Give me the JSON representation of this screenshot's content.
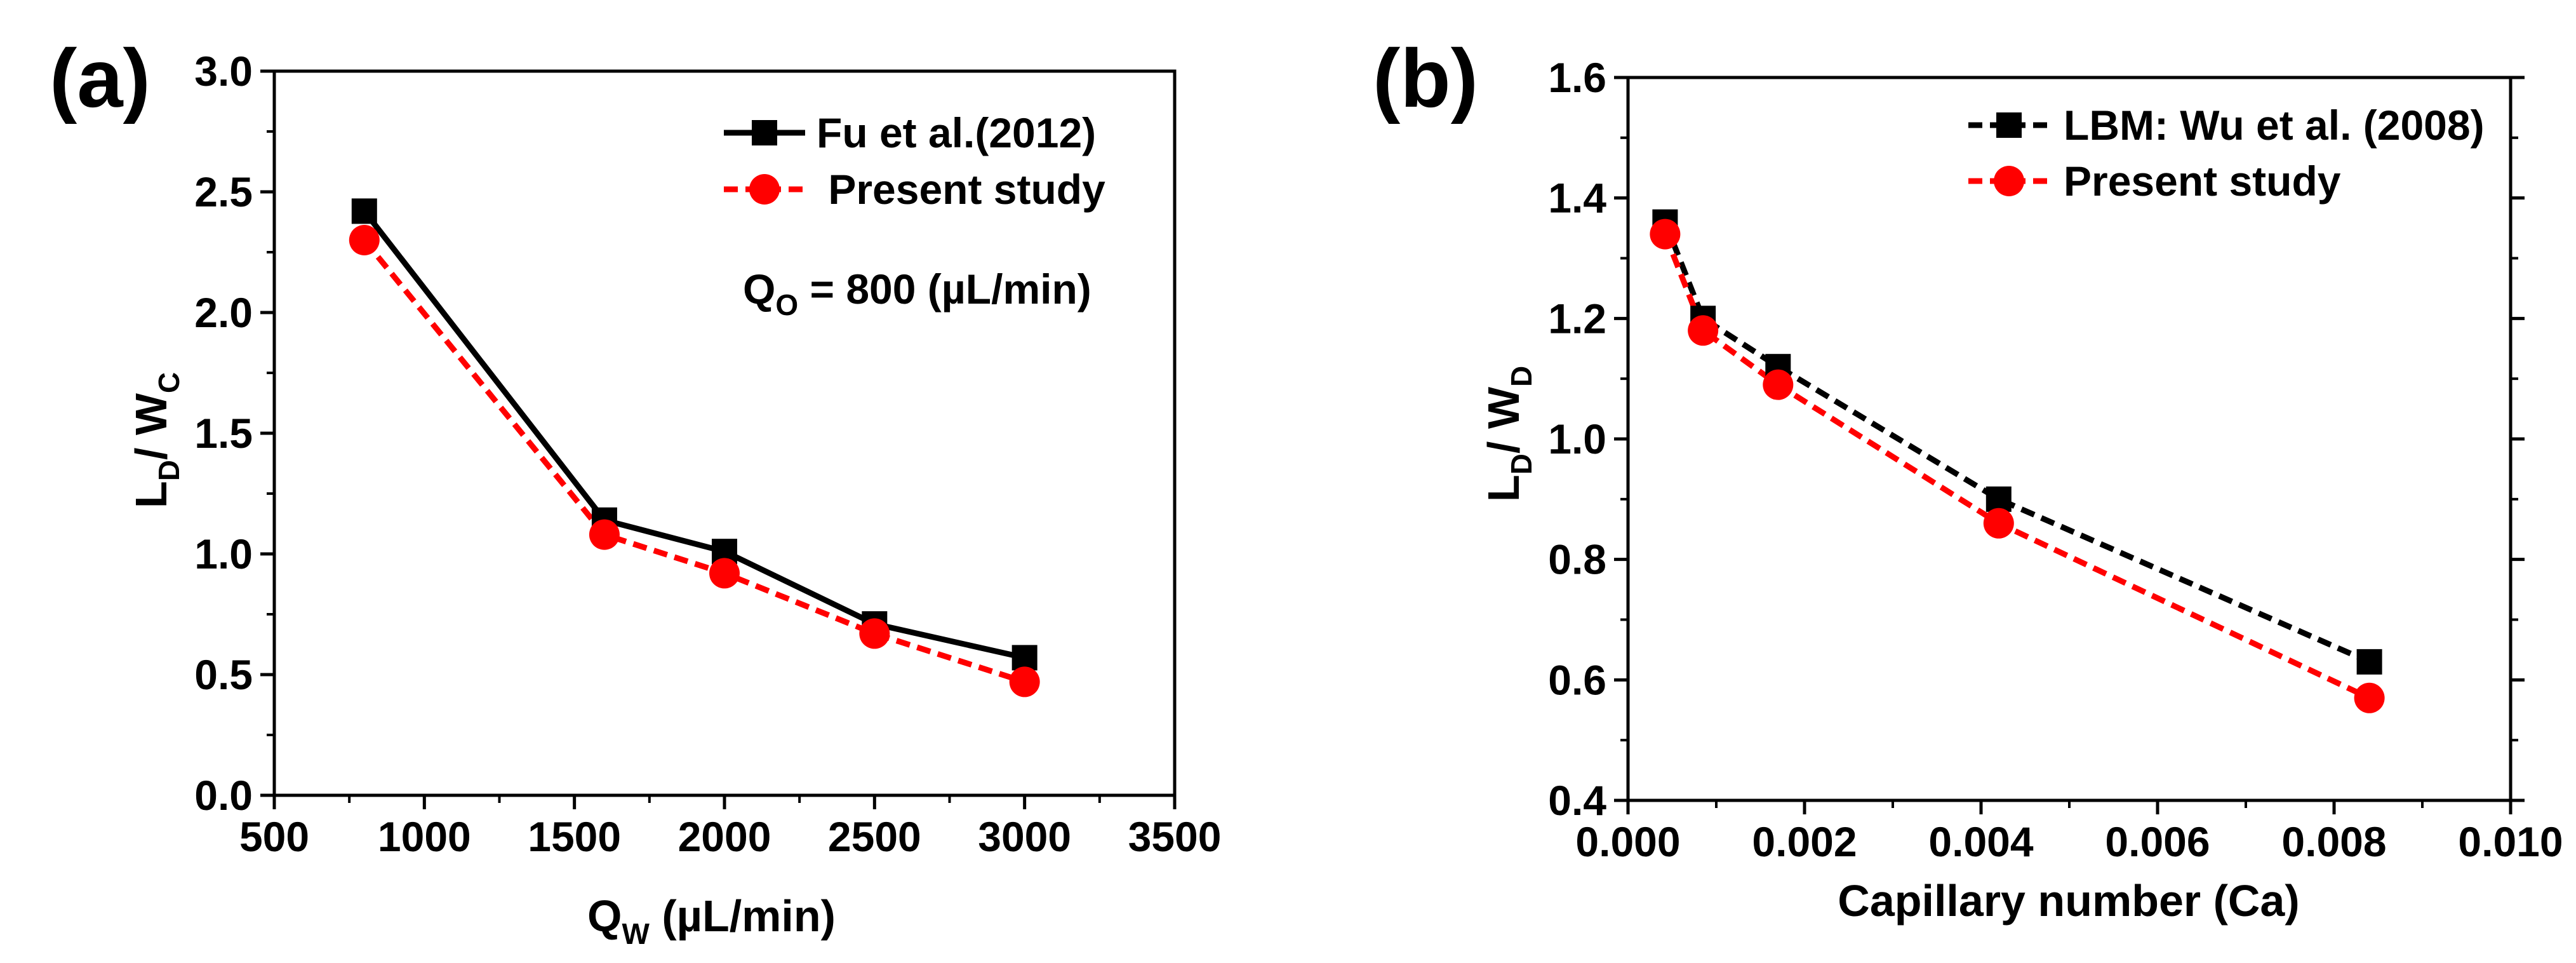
{
  "chart_data": [
    {
      "type": "line",
      "panel_label": "(a)",
      "xlabel": "Q",
      "xlabel_sub": "W",
      "xlabel_unit": " (µL/min)",
      "ylabel": "L",
      "ylabel_sub1": "D",
      "ylabel_mid": "/ W",
      "ylabel_sub2": "C",
      "xlim": [
        500,
        3500
      ],
      "ylim": [
        0.0,
        3.0
      ],
      "xticks": [
        500,
        1000,
        1500,
        2000,
        2500,
        3000,
        3500
      ],
      "xtick_labels": [
        "500",
        "1000",
        "1500",
        "2000",
        "2500",
        "3000",
        "3500"
      ],
      "yticks": [
        0.0,
        0.5,
        1.0,
        1.5,
        2.0,
        2.5,
        3.0
      ],
      "ytick_labels": [
        "0.0",
        "0.5",
        "1.0",
        "1.5",
        "2.0",
        "2.5",
        "3.0"
      ],
      "legend_position": "top-right",
      "annotation": {
        "main": "Q",
        "sub": "O",
        "rest": " = 800 (µL/min)"
      },
      "series": [
        {
          "name": "Fu et al.(2012)",
          "color": "#000000",
          "marker": "square",
          "line": "solid",
          "x": [
            800,
            1600,
            2000,
            2500,
            3000
          ],
          "y": [
            2.42,
            1.14,
            1.01,
            0.71,
            0.57
          ]
        },
        {
          "name": " Present study",
          "color": "#ff0000",
          "marker": "circle",
          "line": "dashed",
          "x": [
            800,
            1600,
            2000,
            2500,
            3000
          ],
          "y": [
            2.3,
            1.08,
            0.92,
            0.67,
            0.47
          ]
        }
      ]
    },
    {
      "type": "line",
      "panel_label": "(b)",
      "xlabel": "Capillary number (Ca)",
      "ylabel": "L",
      "ylabel_sub1": "D",
      "ylabel_mid": "/ W",
      "ylabel_sub2": "D",
      "xlim": [
        0.0,
        0.01
      ],
      "ylim": [
        0.4,
        1.6
      ],
      "xticks": [
        0.0,
        0.002,
        0.004,
        0.006,
        0.008,
        0.01
      ],
      "xtick_labels": [
        "0.000",
        "0.002",
        "0.004",
        "0.006",
        "0.008",
        "0.010"
      ],
      "yticks": [
        0.4,
        0.6,
        0.8,
        1.0,
        1.2,
        1.4,
        1.6
      ],
      "ytick_labels": [
        "0.4",
        "0.6",
        "0.8",
        "1.0",
        "1.2",
        "1.4",
        "1.6"
      ],
      "legend_position": "top-right",
      "series": [
        {
          "name": "LBM: Wu et al. (2008)",
          "color": "#000000",
          "marker": "square",
          "line": "dashed",
          "x": [
            0.00042,
            0.00085,
            0.0017,
            0.0042,
            0.0084
          ],
          "y": [
            1.36,
            1.2,
            1.12,
            0.9,
            0.63
          ]
        },
        {
          "name": "Present study",
          "color": "#ff0000",
          "marker": "circle",
          "line": "dashed",
          "x": [
            0.00042,
            0.00085,
            0.0017,
            0.0042,
            0.0084
          ],
          "y": [
            1.34,
            1.18,
            1.09,
            0.86,
            0.57
          ]
        }
      ]
    }
  ]
}
